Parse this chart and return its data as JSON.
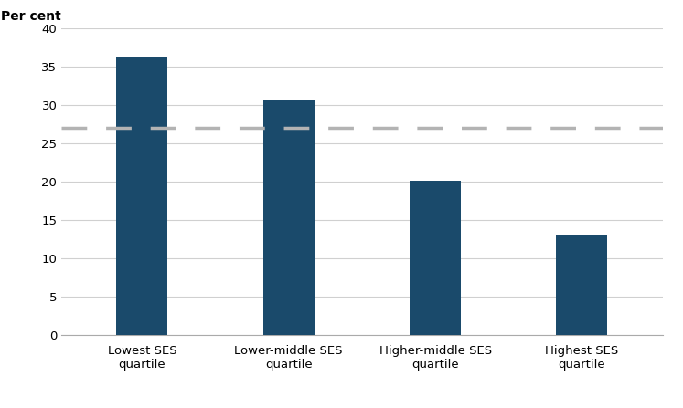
{
  "categories": [
    "Lowest SES\nquartile",
    "Lower-middle SES\nquartile",
    "Higher-middle SES\nquartile",
    "Highest SES\nquartile"
  ],
  "values": [
    36.3,
    30.6,
    20.1,
    13.0
  ],
  "bar_color": "#1a4a6b",
  "dashed_line_y": 27.0,
  "dashed_line_color": "#b3b3b3",
  "ylabel": "Per cent",
  "ylim": [
    0,
    40
  ],
  "yticks": [
    0,
    5,
    10,
    15,
    20,
    25,
    30,
    35,
    40
  ],
  "grid_color": "#d0d0d0",
  "background_color": "#ffffff",
  "bar_width": 0.35
}
